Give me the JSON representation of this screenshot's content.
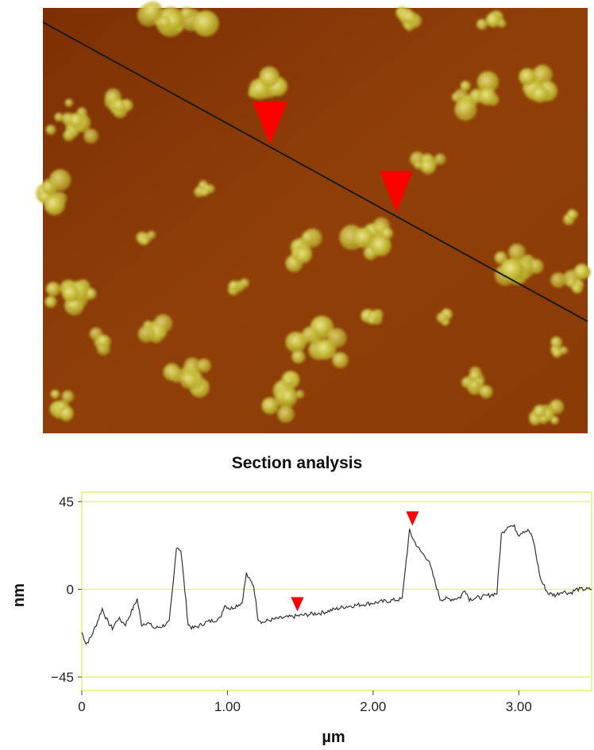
{
  "image": {
    "name": "afm-height-image",
    "colors": {
      "background": "#8c3e06",
      "particle": "#c8c440",
      "particle_highlight": "#e8e28a",
      "scan_line": "#1a1a1a",
      "marker": "#ff0000"
    }
  },
  "chart_data": {
    "type": "line",
    "title": "Section analysis",
    "xlabel": "µm",
    "ylabel": "nm",
    "xlim": [
      0,
      3.5
    ],
    "ylim": [
      -50,
      50
    ],
    "x_ticks": [
      0,
      1.0,
      2.0,
      3.0
    ],
    "x_tick_labels": [
      "0",
      "1.00",
      "2.00",
      "3.00"
    ],
    "y_ticks": [
      45,
      0,
      -45
    ],
    "y_tick_labels": [
      "45",
      "0",
      "−45"
    ],
    "grid": "yellow lines at y=45, y=0, y=-45",
    "series": [
      {
        "x": [
          0,
          0.03,
          0.06,
          0.1,
          0.14,
          0.18,
          0.21,
          0.25,
          0.3,
          0.35,
          0.38,
          0.41,
          0.45,
          0.5,
          0.55,
          0.6,
          0.63,
          0.65,
          0.68,
          0.7,
          0.73,
          0.76,
          0.8,
          0.85,
          0.9,
          0.95,
          0.98,
          1.02,
          1.07,
          1.1,
          1.13,
          1.15,
          1.18,
          1.21,
          1.24,
          1.28,
          1.35,
          1.45,
          1.55,
          1.65,
          1.75,
          1.8,
          1.9,
          2.0,
          2.1,
          2.2,
          2.22,
          2.25,
          2.28,
          2.32,
          2.38,
          2.42,
          2.46,
          2.5,
          2.55,
          2.6,
          2.63,
          2.66,
          2.75,
          2.85,
          2.88,
          2.9,
          2.93,
          2.97,
          3.0,
          3.03,
          3.07,
          3.1,
          3.15,
          3.2,
          3.25,
          3.3,
          3.35,
          3.4,
          3.5
        ],
        "y": [
          -22,
          -28,
          -25,
          -18,
          -10,
          -17,
          -20,
          -15,
          -18,
          -10,
          -5,
          -18,
          -17,
          -20,
          -19,
          -17,
          5,
          22,
          20,
          5,
          -18,
          -20,
          -19,
          -17,
          -16,
          -15,
          -8,
          -10,
          -8,
          -7,
          8,
          5,
          2,
          -15,
          -17,
          -16,
          -15,
          -14,
          -13,
          -12,
          -10,
          -9,
          -8,
          -7,
          -6,
          -5,
          10,
          30,
          25,
          20,
          15,
          5,
          -5,
          -5,
          -5,
          -4,
          0,
          -5,
          -4,
          -2,
          28,
          30,
          33,
          32,
          28,
          30,
          30,
          25,
          5,
          -2,
          -3,
          -1,
          -2,
          0,
          0
        ]
      }
    ],
    "markers": [
      {
        "x": 1.48,
        "y": -13
      },
      {
        "x": 2.27,
        "y": 31
      }
    ]
  }
}
